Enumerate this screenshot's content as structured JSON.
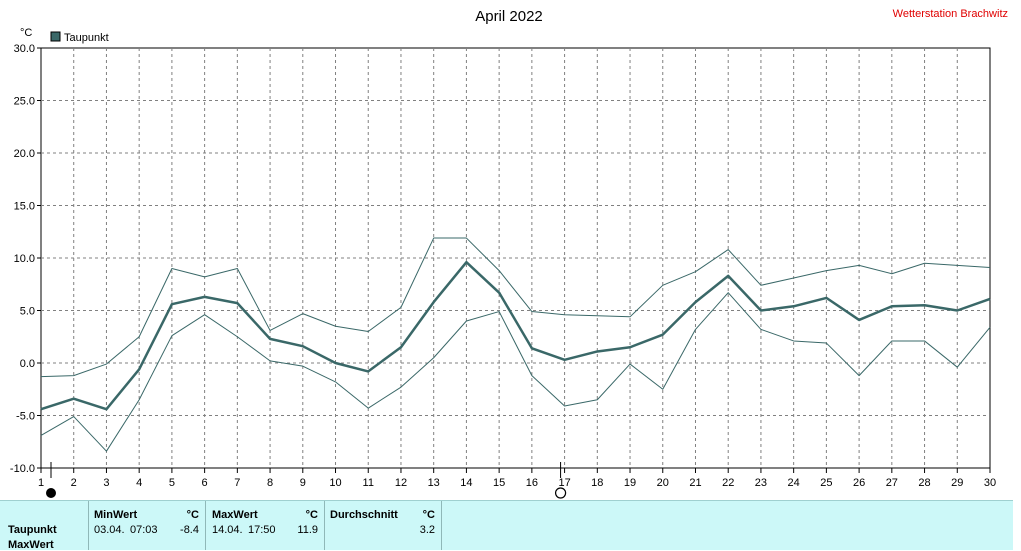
{
  "chart_data": {
    "type": "line",
    "title": "April 2022",
    "station": "Wetterstation Brachwitz",
    "unit_label": "°C",
    "xlim": [
      1,
      30
    ],
    "ylim": [
      -10,
      30
    ],
    "x_ticks": [
      1,
      2,
      3,
      4,
      5,
      6,
      7,
      8,
      9,
      10,
      11,
      12,
      13,
      14,
      15,
      16,
      17,
      18,
      19,
      20,
      21,
      22,
      23,
      24,
      25,
      26,
      27,
      28,
      29,
      30
    ],
    "y_ticks": [
      "-10.0",
      "-5.0",
      "0.0",
      "5.0",
      "10.0",
      "15.0",
      "20.0",
      "25.0",
      "30.0"
    ],
    "grid": true,
    "legend": "top-left",
    "x": [
      1,
      2,
      3,
      4,
      5,
      6,
      7,
      8,
      9,
      10,
      11,
      12,
      13,
      14,
      15,
      16,
      17,
      18,
      19,
      20,
      21,
      22,
      23,
      24,
      25,
      26,
      27,
      28,
      29,
      30
    ],
    "series": [
      {
        "name": "Taupunkt",
        "role": "mean",
        "color": "#3a6868",
        "values": [
          -4.4,
          -3.4,
          -4.4,
          -0.6,
          5.6,
          6.3,
          5.7,
          2.3,
          1.6,
          0.0,
          -0.8,
          1.5,
          5.8,
          9.6,
          6.7,
          1.4,
          0.3,
          1.1,
          1.5,
          2.7,
          5.8,
          8.3,
          5.0,
          5.4,
          6.2,
          4.1,
          5.4,
          5.5,
          5.0,
          6.1
        ]
      },
      {
        "role": "max",
        "color": "#3a6868",
        "values": [
          -1.3,
          -1.2,
          -0.1,
          2.5,
          9.0,
          8.2,
          9.0,
          3.1,
          4.7,
          3.5,
          3.0,
          5.3,
          11.9,
          11.9,
          8.8,
          4.9,
          4.6,
          4.5,
          4.4,
          7.4,
          8.7,
          10.8,
          7.4,
          8.1,
          8.8,
          9.3,
          8.5,
          9.5,
          9.3,
          9.1
        ]
      },
      {
        "role": "min",
        "color": "#3a6868",
        "values": [
          -6.9,
          -5.1,
          -8.4,
          -3.5,
          2.6,
          4.6,
          2.5,
          0.2,
          -0.3,
          -1.8,
          -4.3,
          -2.3,
          0.5,
          4.0,
          4.9,
          -1.2,
          -4.1,
          -3.5,
          -0.1,
          -2.5,
          3.2,
          6.7,
          3.2,
          2.1,
          1.9,
          -1.2,
          2.1,
          2.1,
          -0.4,
          3.4
        ]
      }
    ]
  },
  "markers": {
    "filled_day": 1,
    "open_day": 17
  },
  "table": {
    "row_label": "Taupunkt",
    "row_label_2": "MaxWert",
    "min": {
      "header": "MinWert",
      "unit": "°C",
      "date": "03.04.",
      "time": "07:03",
      "value": "-8.4"
    },
    "max": {
      "header": "MaxWert",
      "unit": "°C",
      "date": "14.04.",
      "time": "17:50",
      "value": "11.9"
    },
    "avg": {
      "header": "Durchschnitt",
      "unit": "°C",
      "value": "3.2"
    }
  }
}
